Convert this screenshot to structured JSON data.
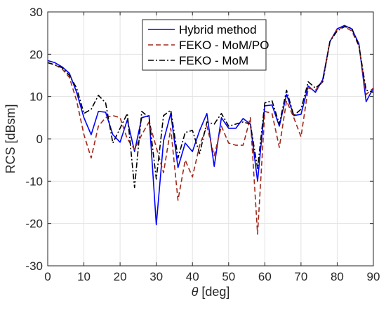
{
  "chart_data": {
    "type": "line",
    "xlabel_symbol": "θ",
    "xlabel_unit": "[deg]",
    "ylabel": "RCS [dBsm]",
    "xlim": [
      0,
      90
    ],
    "ylim": [
      -30,
      30
    ],
    "xticks": [
      0,
      10,
      20,
      30,
      40,
      50,
      60,
      70,
      80,
      90
    ],
    "yticks": [
      -30,
      -20,
      -10,
      0,
      10,
      20,
      30
    ],
    "grid": true,
    "legend_position": "top-center",
    "x": [
      0,
      2,
      4,
      6,
      8,
      10,
      12,
      14,
      16,
      18,
      20,
      22,
      24,
      26,
      28,
      30,
      32,
      34,
      36,
      38,
      40,
      42,
      44,
      46,
      48,
      50,
      52,
      54,
      56,
      58,
      60,
      62,
      64,
      66,
      68,
      70,
      72,
      74,
      76,
      78,
      80,
      82,
      84,
      86,
      88,
      90
    ],
    "series": [
      {
        "name": "Hybrid method",
        "color": "#0000ff",
        "style": "solid",
        "values": [
          18.5,
          18,
          17,
          15.5,
          11,
          5,
          1,
          6.5,
          6.3,
          1,
          -0.8,
          4.5,
          -3,
          5,
          5.5,
          -20.3,
          -0.5,
          6,
          -6.8,
          -1,
          -3,
          2,
          6,
          -6.5,
          5,
          2.5,
          2.5,
          4.8,
          3.5,
          -10,
          7.8,
          8,
          3,
          10.5,
          5.5,
          5.8,
          12.5,
          11,
          14,
          23,
          26,
          26.8,
          26,
          22.5,
          8.8,
          12
        ]
      },
      {
        "name": "FEKO - MoM/PO",
        "color": "#a0291a",
        "style": "dashed",
        "values": [
          18,
          17.5,
          16.5,
          14.5,
          9,
          1,
          -4.5,
          3,
          5,
          5.5,
          5,
          0,
          -2.5,
          1,
          4,
          -2,
          -8,
          2.5,
          -14.5,
          -5,
          -9,
          -1.5,
          3,
          -4,
          3,
          -1,
          -1.5,
          -1.5,
          5,
          -22.5,
          6.5,
          6,
          -2,
          9,
          5,
          0.5,
          12,
          11.5,
          13.5,
          23,
          25.8,
          26.5,
          25.5,
          22,
          10.5,
          12
        ]
      },
      {
        "name": "FEKO - MoM",
        "color": "#000000",
        "style": "dashdot",
        "values": [
          18,
          17.5,
          16.8,
          15,
          12,
          6,
          7,
          10.3,
          8.5,
          -1,
          2.5,
          6,
          -11.5,
          6.5,
          5,
          -9.5,
          5.5,
          6.8,
          -4.5,
          1.5,
          2,
          -3.5,
          4,
          3.5,
          6,
          3,
          3.5,
          4,
          3.5,
          -7,
          8.5,
          9,
          3.5,
          11.5,
          5.5,
          7,
          13.5,
          12,
          13.5,
          23,
          25.5,
          26.5,
          26.2,
          22,
          11.5,
          11
        ]
      }
    ]
  }
}
